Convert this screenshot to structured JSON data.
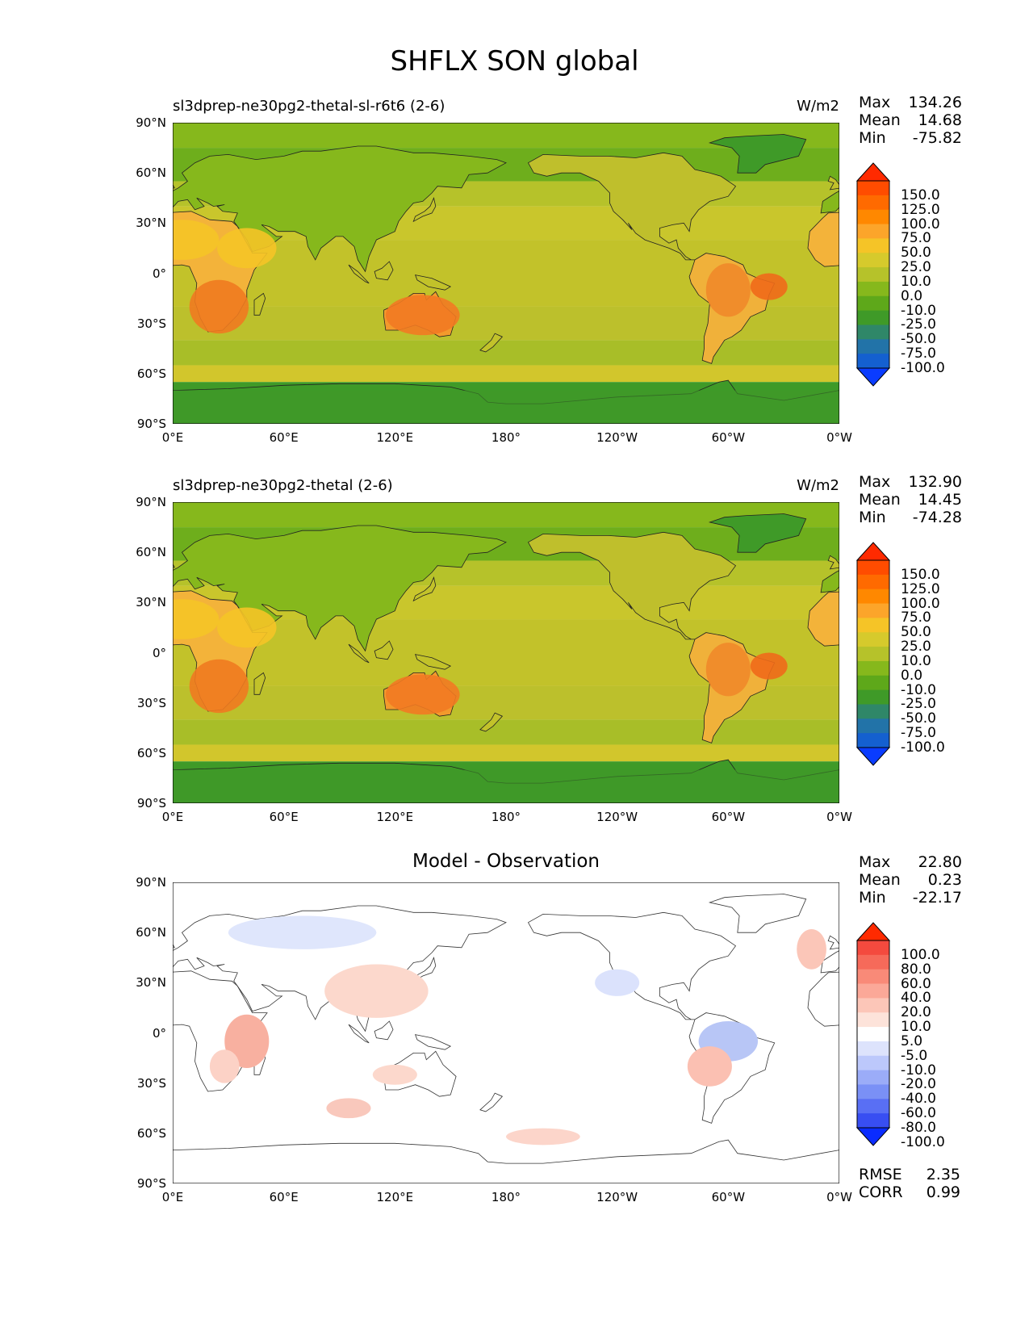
{
  "title": "SHFLX SON global",
  "lat_ticks": [
    "90°N",
    "60°N",
    "30°N",
    "0°",
    "30°S",
    "60°S",
    "90°S"
  ],
  "lon_ticks": [
    "0°E",
    "60°E",
    "120°E",
    "180°",
    "120°W",
    "60°W",
    "0°W"
  ],
  "panels": [
    {
      "id": "model-test",
      "title": "sl3dprep-ne30pg2-thetal-sl-r6t6 (2-6)",
      "units": "W/m2",
      "stats": {
        "max_label": "Max",
        "max": "134.26",
        "mean_label": "Mean",
        "mean": "14.68",
        "min_label": "Min",
        "min": "-75.82"
      },
      "colorbar_levels": [
        "150.0",
        "125.0",
        "100.0",
        "75.0",
        "50.0",
        "25.0",
        "10.0",
        "0.0",
        "-10.0",
        "-25.0",
        "-50.0",
        "-75.0",
        "-100.0"
      ],
      "colorbar_colors": [
        "#ff2a00",
        "#ff4c00",
        "#ff6a00",
        "#ff8800",
        "#fca52a",
        "#f5c427",
        "#d6ca2c",
        "#b6c22a",
        "#86b81c",
        "#5ea81a",
        "#3f9a28",
        "#2f8768",
        "#2273a8",
        "#1460d0",
        "#0a3cff"
      ]
    },
    {
      "id": "model-ref",
      "title": "sl3dprep-ne30pg2-thetal (2-6)",
      "units": "W/m2",
      "stats": {
        "max_label": "Max",
        "max": "132.90",
        "mean_label": "Mean",
        "mean": "14.45",
        "min_label": "Min",
        "min": "-74.28"
      },
      "colorbar_levels": [
        "150.0",
        "125.0",
        "100.0",
        "75.0",
        "50.0",
        "25.0",
        "10.0",
        "0.0",
        "-10.0",
        "-25.0",
        "-50.0",
        "-75.0",
        "-100.0"
      ],
      "colorbar_colors": [
        "#ff2a00",
        "#ff4c00",
        "#ff6a00",
        "#ff8800",
        "#fca52a",
        "#f5c427",
        "#d6ca2c",
        "#b6c22a",
        "#86b81c",
        "#5ea81a",
        "#3f9a28",
        "#2f8768",
        "#2273a8",
        "#1460d0",
        "#0a3cff"
      ]
    },
    {
      "id": "diff",
      "title": "Model - Observation",
      "stats": {
        "max_label": "Max",
        "max": "22.80",
        "mean_label": "Mean",
        "mean": "0.23",
        "min_label": "Min",
        "min": "-22.17"
      },
      "colorbar_levels": [
        "100.0",
        "80.0",
        "60.0",
        "40.0",
        "20.0",
        "10.0",
        "5.0",
        "-5.0",
        "-10.0",
        "-20.0",
        "-40.0",
        "-60.0",
        "-80.0",
        "-100.0"
      ],
      "colorbar_colors": [
        "#ff2a00",
        "#f44a3e",
        "#f66a5a",
        "#f98a78",
        "#fba898",
        "#fcc6b8",
        "#fde3da",
        "#ffffff",
        "#dde3fc",
        "#bcc8fb",
        "#9bacf8",
        "#7a90f6",
        "#596ff4",
        "#384ef2",
        "#0a2cff"
      ],
      "metrics": {
        "rmse_label": "RMSE",
        "rmse": "2.35",
        "corr_label": "CORR",
        "corr": "0.99"
      }
    }
  ]
}
